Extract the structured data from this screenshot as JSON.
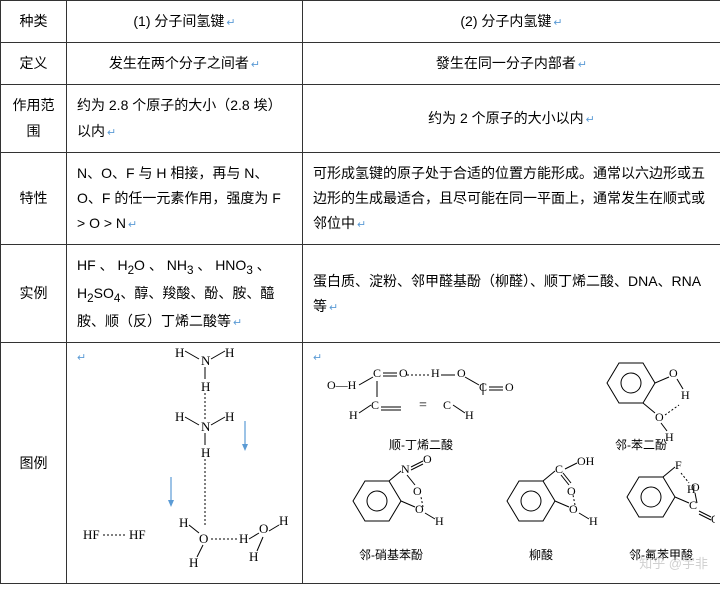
{
  "header": {
    "row_label": "种类",
    "col1": "(1) 分子间氢键",
    "col2": "(2) 分子内氢键"
  },
  "definition": {
    "label": "定义",
    "col1": "发生在两个分子之间者",
    "col2": "發生在同一分子内部者"
  },
  "range": {
    "label": "作用范围",
    "col1": "约为 2.8 个原子的大小（2.8 埃）以内",
    "col2": "约为 2 个原子的大小以内"
  },
  "property": {
    "label": "特性",
    "col1": "N、O、F 与 H 相接，再与 N、O、F 的任一元素作用，强度为 F > O > N",
    "col2": "可形成氢键的原子处于合适的位置方能形成。通常以六边形或五边形的生成最适合，且尽可能在同一平面上，通常发生在顺式或邻位中"
  },
  "example": {
    "label": "实例",
    "col1_html": "HF 、 H<sub>2</sub>O 、 NH<sub>3</sub> 、 HNO<sub>3</sub> 、H<sub>2</sub>SO<sub>4</sub>、醇、羧酸、酚、胺、醯胺、顺（反）丁烯二酸等",
    "col2": "蛋白质、淀粉、邻甲醛基酚（柳醛）、顺丁烯二酸、DNA、RNA 等"
  },
  "diagram": {
    "label": "图例",
    "labels": {
      "maleic": "顺-丁烯二酸",
      "catechol": "邻-苯二酚",
      "nitrophenol": "邻-硝基苯酚",
      "salicylic": "柳酸",
      "fluorobenzoic": "邻-氟苯甲酸"
    }
  },
  "watermark": "知乎 @宇非",
  "colors": {
    "border": "#333333",
    "text": "#000000",
    "marker": "#5b9bd5",
    "arrow": "#5b9bd5"
  }
}
